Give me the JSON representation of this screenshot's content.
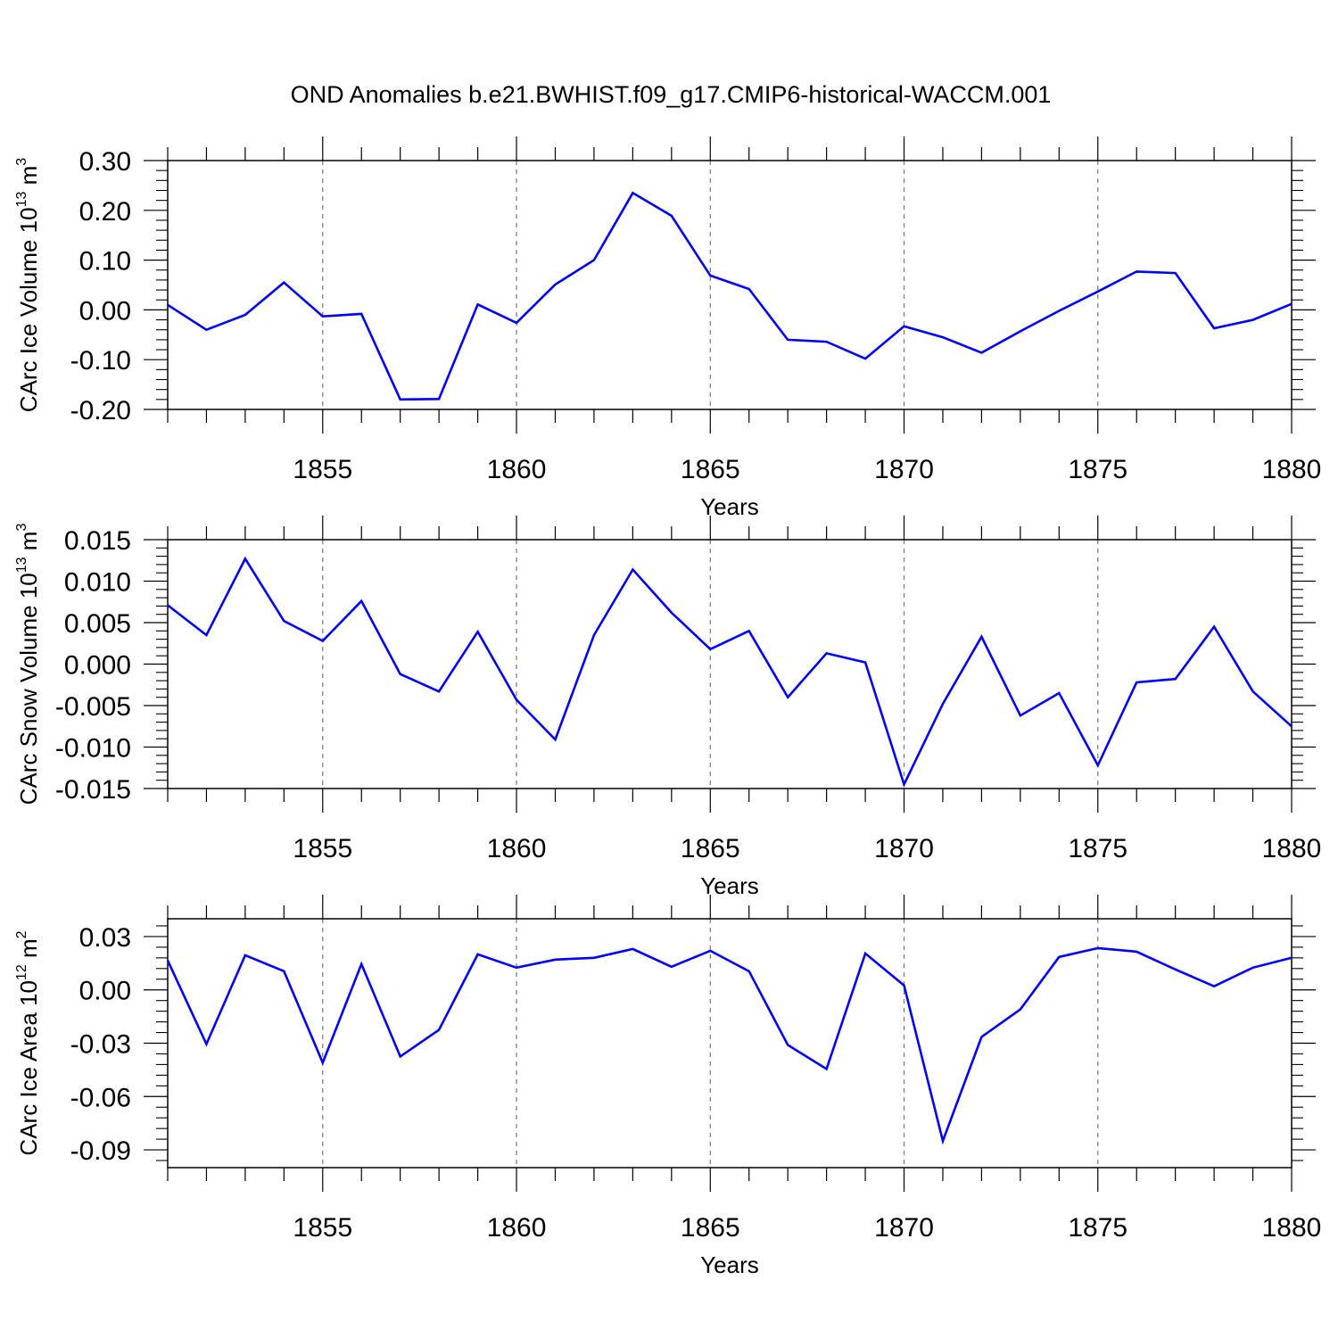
{
  "title": "OND Anomalies b.e21.BWHIST.f09_g17.CMIP6-historical-WACCM.001",
  "line_color": "#0000ff",
  "chart_data": [
    {
      "type": "line",
      "title": "",
      "xlabel": "Years",
      "ylabel": {
        "prefix": "CArc Ice Volume 10",
        "exponent": "13",
        "unit": " m",
        "unit_exponent": "3"
      },
      "xlim": [
        1851,
        1880
      ],
      "ylim": [
        -0.2,
        0.3
      ],
      "yticks": [
        -0.2,
        -0.1,
        0.0,
        0.1,
        0.2,
        0.3
      ],
      "ytick_labels": [
        "-0.20",
        "-0.10",
        "0.00",
        "0.10",
        "0.20",
        "0.30"
      ],
      "xticks": [
        1855,
        1860,
        1865,
        1870,
        1875,
        1880
      ],
      "xtick_labels": [
        "1855",
        "1860",
        "1865",
        "1870",
        "1875",
        "1880"
      ],
      "x": [
        1851,
        1852,
        1853,
        1854,
        1855,
        1856,
        1857,
        1858,
        1859,
        1860,
        1861,
        1862,
        1863,
        1864,
        1865,
        1866,
        1867,
        1868,
        1869,
        1870,
        1871,
        1872,
        1873,
        1874,
        1875,
        1876,
        1877,
        1878,
        1879,
        1880
      ],
      "series": [
        {
          "name": "CArc Ice Volume",
          "values": [
            0.01,
            -0.04,
            -0.01,
            0.055,
            -0.013,
            -0.008,
            -0.18,
            -0.179,
            0.011,
            -0.026,
            0.051,
            0.1,
            0.235,
            0.189,
            0.069,
            0.042,
            -0.06,
            -0.064,
            -0.098,
            -0.033,
            -0.055,
            -0.086,
            -0.043,
            -0.002,
            0.037,
            0.077,
            0.074,
            -0.037,
            -0.02,
            0.012
          ]
        }
      ]
    },
    {
      "type": "line",
      "title": "",
      "xlabel": "Years",
      "ylabel": {
        "prefix": "CArc Snow Volume 10",
        "exponent": "13",
        "unit": " m",
        "unit_exponent": "3"
      },
      "xlim": [
        1851,
        1880
      ],
      "ylim": [
        -0.015,
        0.015
      ],
      "yticks": [
        -0.015,
        -0.01,
        -0.005,
        0.0,
        0.005,
        0.01,
        0.015
      ],
      "ytick_labels": [
        "-0.015",
        "-0.010",
        "-0.005",
        "0.000",
        "0.005",
        "0.010",
        "0.015"
      ],
      "xticks": [
        1855,
        1860,
        1865,
        1870,
        1875,
        1880
      ],
      "xtick_labels": [
        "1855",
        "1860",
        "1865",
        "1870",
        "1875",
        "1880"
      ],
      "x": [
        1851,
        1852,
        1853,
        1854,
        1855,
        1856,
        1857,
        1858,
        1859,
        1860,
        1861,
        1862,
        1863,
        1864,
        1865,
        1866,
        1867,
        1868,
        1869,
        1870,
        1871,
        1872,
        1873,
        1874,
        1875,
        1876,
        1877,
        1878,
        1879,
        1880
      ],
      "series": [
        {
          "name": "CArc Snow Volume",
          "values": [
            0.0071,
            0.0035,
            0.0127,
            0.0052,
            0.0028,
            0.0076,
            -0.0012,
            -0.0033,
            0.0039,
            -0.0043,
            -0.0091,
            0.0035,
            0.0114,
            0.0062,
            0.0018,
            0.004,
            -0.004,
            0.0013,
            0.0002,
            -0.0145,
            -0.0048,
            0.0033,
            -0.0062,
            -0.0035,
            -0.0122,
            -0.0022,
            -0.0018,
            0.0045,
            -0.0033,
            -0.0075
          ]
        }
      ]
    },
    {
      "type": "line",
      "title": "",
      "xlabel": "Years",
      "ylabel": {
        "prefix": "CArc Ice Area 10",
        "exponent": "12",
        "unit": " m",
        "unit_exponent": "2"
      },
      "xlim": [
        1851,
        1880
      ],
      "ylim": [
        -0.1,
        0.04
      ],
      "yticks": [
        -0.09,
        -0.06,
        -0.03,
        0.0,
        0.03
      ],
      "ytick_labels": [
        "-0.09",
        "-0.06",
        "-0.03",
        "0.00",
        "0.03"
      ],
      "xticks": [
        1855,
        1860,
        1865,
        1870,
        1875,
        1880
      ],
      "xtick_labels": [
        "1855",
        "1860",
        "1865",
        "1870",
        "1875",
        "1880"
      ],
      "x": [
        1851,
        1852,
        1853,
        1854,
        1855,
        1856,
        1857,
        1858,
        1859,
        1860,
        1861,
        1862,
        1863,
        1864,
        1865,
        1866,
        1867,
        1868,
        1869,
        1870,
        1871,
        1872,
        1873,
        1874,
        1875,
        1876,
        1877,
        1878,
        1879,
        1880
      ],
      "series": [
        {
          "name": "CArc Ice Area",
          "values": [
            0.0165,
            -0.0305,
            0.0195,
            0.0105,
            -0.041,
            0.0145,
            -0.0375,
            -0.0225,
            0.02,
            0.0125,
            0.017,
            0.018,
            0.023,
            0.013,
            0.022,
            0.0105,
            -0.031,
            -0.0445,
            0.0205,
            0.0025,
            -0.085,
            -0.0265,
            -0.011,
            0.0185,
            0.0235,
            0.0215,
            0.0115,
            0.002,
            0.0125,
            0.018
          ]
        }
      ]
    }
  ]
}
